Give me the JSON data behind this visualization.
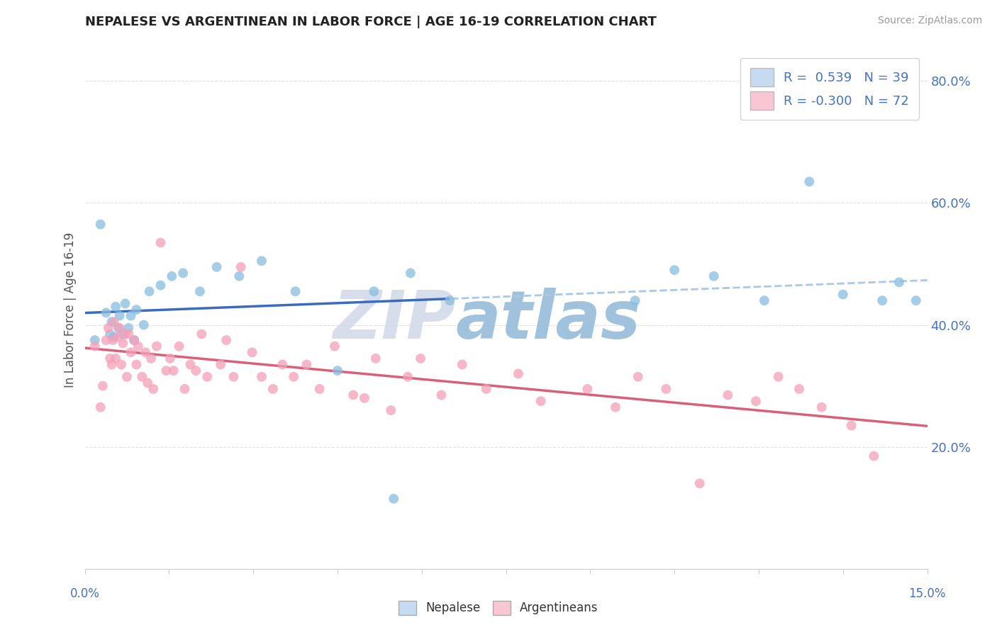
{
  "title": "NEPALESE VS ARGENTINEAN IN LABOR FORCE | AGE 16-19 CORRELATION CHART",
  "source": "Source: ZipAtlas.com",
  "ylabel": "In Labor Force | Age 16-19",
  "xlim": [
    0.0,
    15.0
  ],
  "ylim": [
    0.0,
    85.0
  ],
  "yticks": [
    20.0,
    40.0,
    60.0,
    80.0
  ],
  "ytick_labels": [
    "20.0%",
    "40.0%",
    "60.0%",
    "80.0%"
  ],
  "blue_dot": "#89bde0",
  "blue_legend": "#c6dbef",
  "blue_line": "#3a6bbf",
  "blue_dash": "#a8c8e8",
  "pink_dot": "#f4a0b8",
  "pink_legend": "#f9c6d4",
  "pink_line": "#d9607a",
  "text_blue": "#4472c4",
  "watermark_zip": "ZIP",
  "watermark_atlas": "atlas",
  "watermark_color_zip": "#d0d8e8",
  "watermark_color_atlas": "#90b8d8",
  "grid_color": "#e0e0e0",
  "legend_blue_label": "R =  0.539   N = 39",
  "legend_pink_label": "R = -0.300   N = 72",
  "bottom_legend_blue": "Nepalese",
  "bottom_legend_pink": "Argentineans",
  "nepalese_x": [
    0.18,
    0.28,
    0.38,
    0.45,
    0.48,
    0.52,
    0.55,
    0.6,
    0.62,
    0.68,
    0.72,
    0.78,
    0.82,
    0.88,
    0.92,
    1.05,
    1.15,
    1.35,
    1.55,
    1.75,
    2.05,
    2.35,
    2.75,
    3.15,
    3.75,
    4.5,
    5.15,
    5.8,
    6.5,
    9.8,
    10.5,
    11.2,
    12.1,
    12.9,
    13.5,
    14.2,
    14.5,
    14.8,
    5.5
  ],
  "nepalese_y": [
    37.5,
    56.5,
    42.0,
    38.5,
    40.5,
    38.0,
    43.0,
    39.5,
    41.5,
    38.5,
    43.5,
    39.5,
    41.5,
    37.5,
    42.5,
    40.0,
    45.5,
    46.5,
    48.0,
    48.5,
    45.5,
    49.5,
    48.0,
    50.5,
    45.5,
    32.5,
    45.5,
    48.5,
    44.0,
    44.0,
    49.0,
    48.0,
    44.0,
    63.5,
    45.0,
    44.0,
    47.0,
    44.0,
    11.5
  ],
  "argentinean_x": [
    0.18,
    0.28,
    0.32,
    0.38,
    0.42,
    0.45,
    0.48,
    0.5,
    0.52,
    0.55,
    0.58,
    0.62,
    0.65,
    0.68,
    0.72,
    0.75,
    0.78,
    0.82,
    0.88,
    0.92,
    0.95,
    1.02,
    1.08,
    1.12,
    1.18,
    1.22,
    1.28,
    1.35,
    1.45,
    1.52,
    1.58,
    1.68,
    1.78,
    1.88,
    1.98,
    2.08,
    2.18,
    2.42,
    2.52,
    2.65,
    2.78,
    2.98,
    3.15,
    3.35,
    3.52,
    3.72,
    3.95,
    4.18,
    4.45,
    4.78,
    4.98,
    5.18,
    5.45,
    5.75,
    5.98,
    6.35,
    6.72,
    7.15,
    7.72,
    8.12,
    8.95,
    9.45,
    9.85,
    10.35,
    10.95,
    11.45,
    11.95,
    12.35,
    12.72,
    13.12,
    13.65,
    14.05
  ],
  "argentinean_y": [
    36.5,
    26.5,
    30.0,
    37.5,
    39.5,
    34.5,
    33.5,
    37.5,
    40.5,
    34.5,
    38.0,
    39.5,
    33.5,
    37.0,
    38.5,
    31.5,
    38.5,
    35.5,
    37.5,
    33.5,
    36.5,
    31.5,
    35.5,
    30.5,
    34.5,
    29.5,
    36.5,
    53.5,
    32.5,
    34.5,
    32.5,
    36.5,
    29.5,
    33.5,
    32.5,
    38.5,
    31.5,
    33.5,
    37.5,
    31.5,
    49.5,
    35.5,
    31.5,
    29.5,
    33.5,
    31.5,
    33.5,
    29.5,
    36.5,
    28.5,
    28.0,
    34.5,
    26.0,
    31.5,
    34.5,
    28.5,
    33.5,
    29.5,
    32.0,
    27.5,
    29.5,
    26.5,
    31.5,
    29.5,
    14.0,
    28.5,
    27.5,
    31.5,
    29.5,
    26.5,
    23.5,
    18.5
  ]
}
